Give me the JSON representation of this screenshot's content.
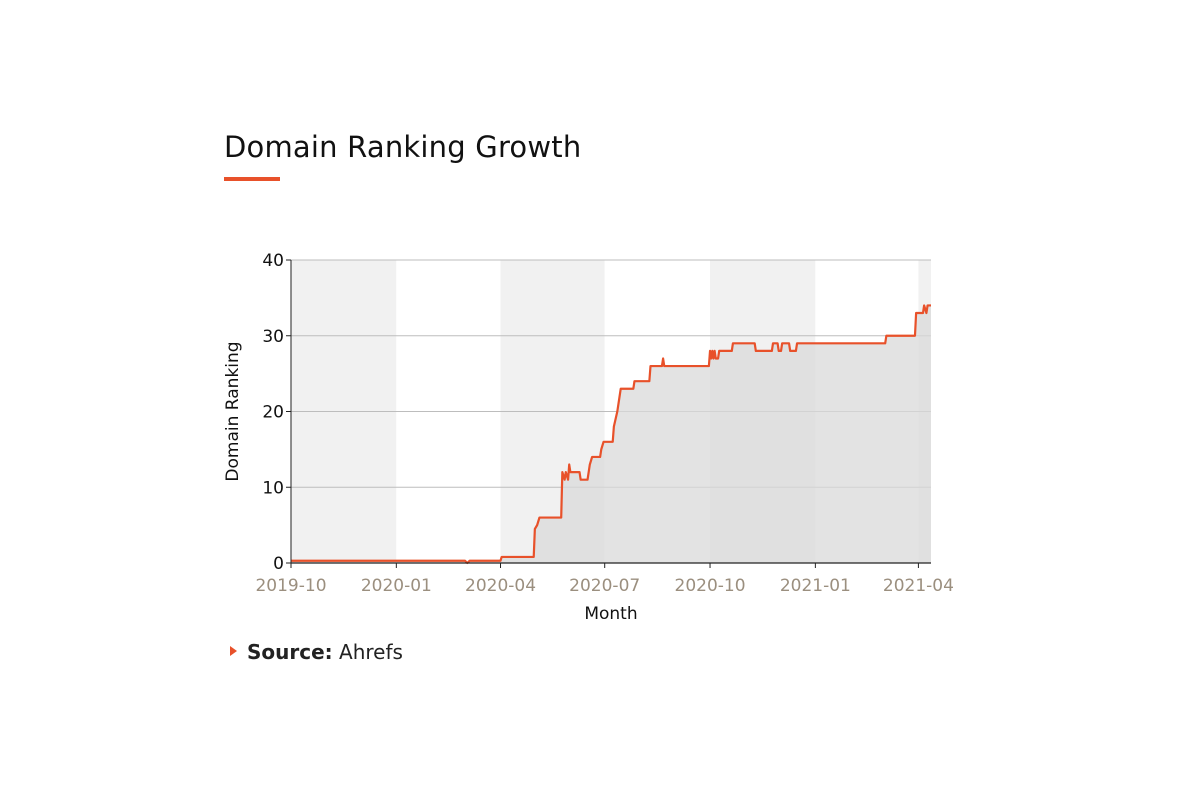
{
  "title": "Domain Ranking Growth",
  "accent_color": "#e8512a",
  "source": {
    "label": "Source:",
    "value": "Ahrefs"
  },
  "chart_data": {
    "type": "line",
    "xlabel": "Month",
    "ylabel": "Domain Ranking",
    "ylim": [
      0,
      40
    ],
    "yticks": [
      0,
      10,
      20,
      30,
      40
    ],
    "xlim": [
      "2019-10-01",
      "2021-04-12"
    ],
    "xticks": [
      "2019-10",
      "2020-01",
      "2020-04",
      "2020-07",
      "2020-10",
      "2021-01",
      "2021-04"
    ],
    "grid": "horizontal",
    "line_color": "#e8512a",
    "area_fill": "#d9d9d9",
    "band_colors": [
      "#f1f1f1",
      "#ffffff"
    ],
    "series": [
      {
        "points": [
          [
            "2019-10-01",
            0.3
          ],
          [
            "2020-03-01",
            0.3
          ],
          [
            "2020-03-03",
            0.0
          ],
          [
            "2020-03-05",
            0.3
          ],
          [
            "2020-04-01",
            0.3
          ],
          [
            "2020-04-02",
            0.8
          ],
          [
            "2020-04-30",
            0.8
          ],
          [
            "2020-05-01",
            4.5
          ],
          [
            "2020-05-03",
            5.0
          ],
          [
            "2020-05-05",
            6.0
          ],
          [
            "2020-05-24",
            6.0
          ],
          [
            "2020-05-25",
            12.0
          ],
          [
            "2020-05-27",
            11.0
          ],
          [
            "2020-05-28",
            12.0
          ],
          [
            "2020-05-30",
            11.0
          ],
          [
            "2020-05-31",
            13.0
          ],
          [
            "2020-06-01",
            12.0
          ],
          [
            "2020-06-09",
            12.0
          ],
          [
            "2020-06-10",
            11.0
          ],
          [
            "2020-06-16",
            11.0
          ],
          [
            "2020-06-18",
            13.0
          ],
          [
            "2020-06-20",
            14.0
          ],
          [
            "2020-06-27",
            14.0
          ],
          [
            "2020-06-28",
            15.0
          ],
          [
            "2020-06-30",
            16.0
          ],
          [
            "2020-07-08",
            16.0
          ],
          [
            "2020-07-09",
            18.0
          ],
          [
            "2020-07-12",
            20.0
          ],
          [
            "2020-07-14",
            22.0
          ],
          [
            "2020-07-15",
            23.0
          ],
          [
            "2020-07-26",
            23.0
          ],
          [
            "2020-07-27",
            24.0
          ],
          [
            "2020-08-09",
            24.0
          ],
          [
            "2020-08-10",
            26.0
          ],
          [
            "2020-08-20",
            26.0
          ],
          [
            "2020-08-21",
            27.0
          ],
          [
            "2020-08-22",
            26.0
          ],
          [
            "2020-09-30",
            26.0
          ],
          [
            "2020-10-01",
            28.0
          ],
          [
            "2020-10-02",
            27.0
          ],
          [
            "2020-10-03",
            28.0
          ],
          [
            "2020-10-04",
            27.0
          ],
          [
            "2020-10-05",
            28.0
          ],
          [
            "2020-10-06",
            27.0
          ],
          [
            "2020-10-08",
            27.0
          ],
          [
            "2020-10-09",
            28.0
          ],
          [
            "2020-10-20",
            28.0
          ],
          [
            "2020-10-21",
            29.0
          ],
          [
            "2020-11-09",
            29.0
          ],
          [
            "2020-11-10",
            28.0
          ],
          [
            "2020-11-24",
            28.0
          ],
          [
            "2020-11-25",
            29.0
          ],
          [
            "2020-11-29",
            29.0
          ],
          [
            "2020-11-30",
            28.0
          ],
          [
            "2020-12-02",
            28.0
          ],
          [
            "2020-12-03",
            29.0
          ],
          [
            "2020-12-09",
            29.0
          ],
          [
            "2020-12-10",
            28.0
          ],
          [
            "2020-12-15",
            28.0
          ],
          [
            "2020-12-16",
            29.0
          ],
          [
            "2021-03-03",
            29.0
          ],
          [
            "2021-03-04",
            30.0
          ],
          [
            "2021-03-29",
            30.0
          ],
          [
            "2021-03-30",
            33.0
          ],
          [
            "2021-04-05",
            33.0
          ],
          [
            "2021-04-06",
            34.0
          ],
          [
            "2021-04-08",
            33.0
          ],
          [
            "2021-04-09",
            34.0
          ],
          [
            "2021-04-12",
            34.0
          ]
        ]
      }
    ]
  }
}
